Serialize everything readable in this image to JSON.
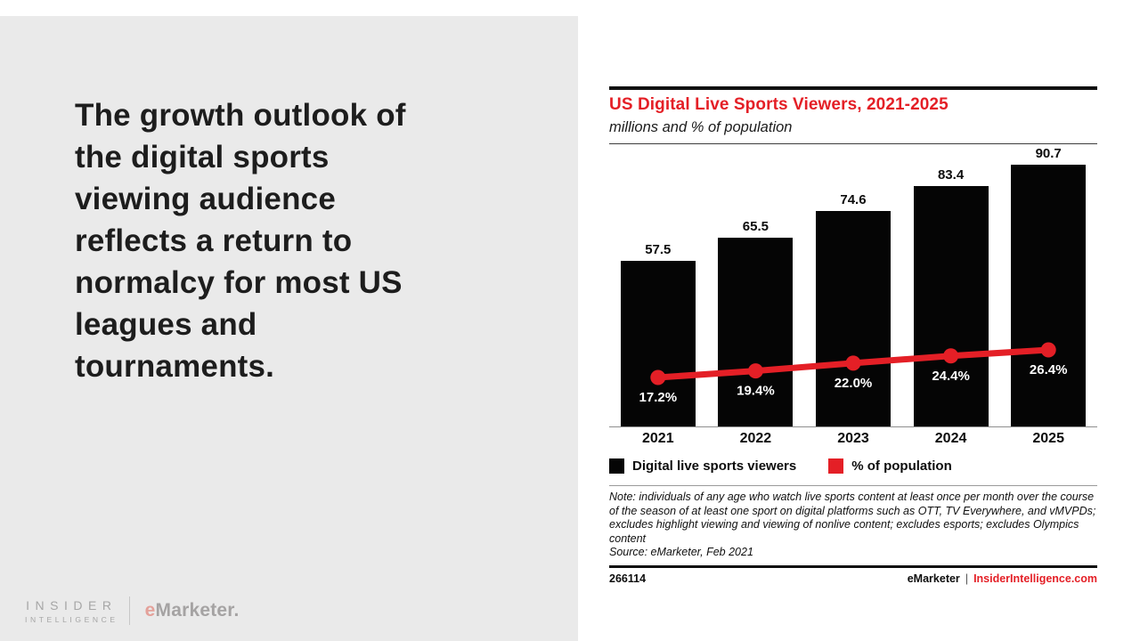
{
  "colors": {
    "accent_red": "#e41f26",
    "bar_black": "#050505",
    "panel_gray": "#eaeaea"
  },
  "left_panel": {
    "headline": "The growth outlook of\nthe digital sports\nviewing audience\nreflects a return to\nnormalcy for most US\nleagues and\ntournaments.",
    "brand": {
      "insider_line1": "INSIDER",
      "insider_line2": "INTELLIGENCE",
      "emarketer_e": "e",
      "emarketer_rest": "Marketer."
    }
  },
  "chart": {
    "title": "US Digital Live Sports Viewers, 2021-2025",
    "subtitle": "millions and % of population",
    "legend": [
      {
        "label": "Digital live sports viewers",
        "color": "#050505"
      },
      {
        "label": "% of population",
        "color": "#e41f26"
      }
    ],
    "note": "Note: individuals of any age who watch live sports content at least once per month over the course of the season of at least one sport on digital platforms such as OTT, TV Everywhere, and vMVPDs; excludes highlight viewing and viewing of nonlive content; excludes esports; excludes Olympics content",
    "source": "Source: eMarketer, Feb 2021",
    "footer": {
      "id": "266114",
      "brand": "eMarketer",
      "separator": "|",
      "site": "InsiderIntelligence.com"
    }
  },
  "chart_data": {
    "type": "bar",
    "title": "US Digital Live Sports Viewers, 2021-2025",
    "subtitle": "millions and % of population",
    "categories": [
      "2021",
      "2022",
      "2023",
      "2024",
      "2025"
    ],
    "series": [
      {
        "name": "Digital live sports viewers",
        "type": "bar",
        "unit": "millions",
        "color": "#050505",
        "values": [
          57.5,
          65.5,
          74.6,
          83.4,
          90.7
        ],
        "labels": [
          "57.5",
          "65.5",
          "74.6",
          "83.4",
          "90.7"
        ]
      },
      {
        "name": "% of population",
        "type": "line",
        "unit": "%",
        "color": "#e41f26",
        "values": [
          17.2,
          19.4,
          22.0,
          24.4,
          26.4
        ],
        "labels": [
          "17.2%",
          "19.4%",
          "22.0%",
          "24.4%",
          "26.4%"
        ]
      }
    ],
    "legend_position": "bottom",
    "grid": false
  }
}
